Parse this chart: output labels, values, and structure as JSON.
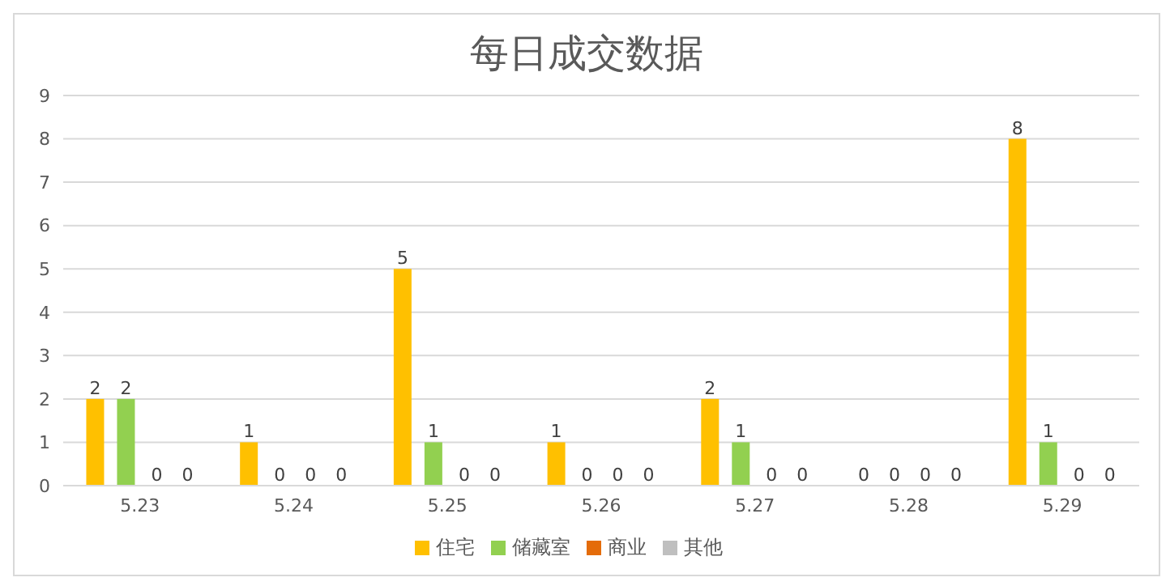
{
  "chart_data": {
    "type": "bar",
    "title": "每日成交数据",
    "categories": [
      "5.23",
      "5.24",
      "5.25",
      "5.26",
      "5.27",
      "5.28",
      "5.29"
    ],
    "series": [
      {
        "name": "住宅",
        "color": "#ffc000",
        "values": [
          2,
          1,
          5,
          1,
          2,
          0,
          8
        ]
      },
      {
        "name": "储藏室",
        "color": "#92d050",
        "values": [
          2,
          0,
          1,
          0,
          1,
          0,
          1
        ]
      },
      {
        "name": "商业",
        "color": "#e46c0a",
        "values": [
          0,
          0,
          0,
          0,
          0,
          0,
          0
        ]
      },
      {
        "name": "其他",
        "color": "#bfbfbf",
        "values": [
          0,
          0,
          0,
          0,
          0,
          0,
          0
        ]
      }
    ],
    "ylim": [
      0,
      9
    ],
    "yticks": [
      0,
      1,
      2,
      3,
      4,
      5,
      6,
      7,
      8,
      9
    ],
    "grid": "y",
    "legend": "bottom",
    "data_labels": true
  }
}
